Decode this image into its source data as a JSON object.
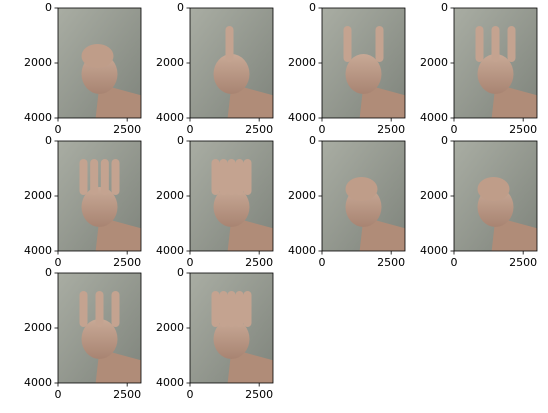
{
  "chart_data": [
    {
      "type": "image",
      "xlim": [
        0,
        3000
      ],
      "ylim": [
        4000,
        0
      ],
      "xticks": [
        0,
        2500
      ],
      "yticks": [
        0,
        2000,
        4000
      ]
    },
    {
      "type": "image",
      "xlim": [
        0,
        3000
      ],
      "ylim": [
        4000,
        0
      ],
      "xticks": [
        0,
        2500
      ],
      "yticks": [
        0,
        2000,
        4000
      ]
    },
    {
      "type": "image",
      "xlim": [
        0,
        3000
      ],
      "ylim": [
        4000,
        0
      ],
      "xticks": [
        0,
        2500
      ],
      "yticks": [
        0,
        2000,
        4000
      ]
    },
    {
      "type": "image",
      "xlim": [
        0,
        3000
      ],
      "ylim": [
        4000,
        0
      ],
      "xticks": [
        0,
        2500
      ],
      "yticks": [
        0,
        2000,
        4000
      ]
    },
    {
      "type": "image",
      "xlim": [
        0,
        3000
      ],
      "ylim": [
        4000,
        0
      ],
      "xticks": [
        0,
        2500
      ],
      "yticks": [
        0,
        2000,
        4000
      ]
    },
    {
      "type": "image",
      "xlim": [
        0,
        3000
      ],
      "ylim": [
        4000,
        0
      ],
      "xticks": [
        0,
        2500
      ],
      "yticks": [
        0,
        2000,
        4000
      ]
    },
    {
      "type": "image",
      "xlim": [
        0,
        3000
      ],
      "ylim": [
        4000,
        0
      ],
      "xticks": [
        0,
        2500
      ],
      "yticks": [
        0,
        2000,
        4000
      ]
    },
    {
      "type": "image",
      "xlim": [
        0,
        3000
      ],
      "ylim": [
        4000,
        0
      ],
      "xticks": [
        0,
        2500
      ],
      "yticks": [
        0,
        2000,
        4000
      ]
    },
    {
      "type": "image",
      "xlim": [
        0,
        3000
      ],
      "ylim": [
        4000,
        0
      ],
      "xticks": [
        0,
        2500
      ],
      "yticks": [
        0,
        2000,
        4000
      ]
    },
    {
      "type": "image",
      "xlim": [
        0,
        3000
      ],
      "ylim": [
        4000,
        0
      ],
      "xticks": [
        0,
        2500
      ],
      "yticks": [
        0,
        2000,
        4000
      ]
    }
  ]
}
